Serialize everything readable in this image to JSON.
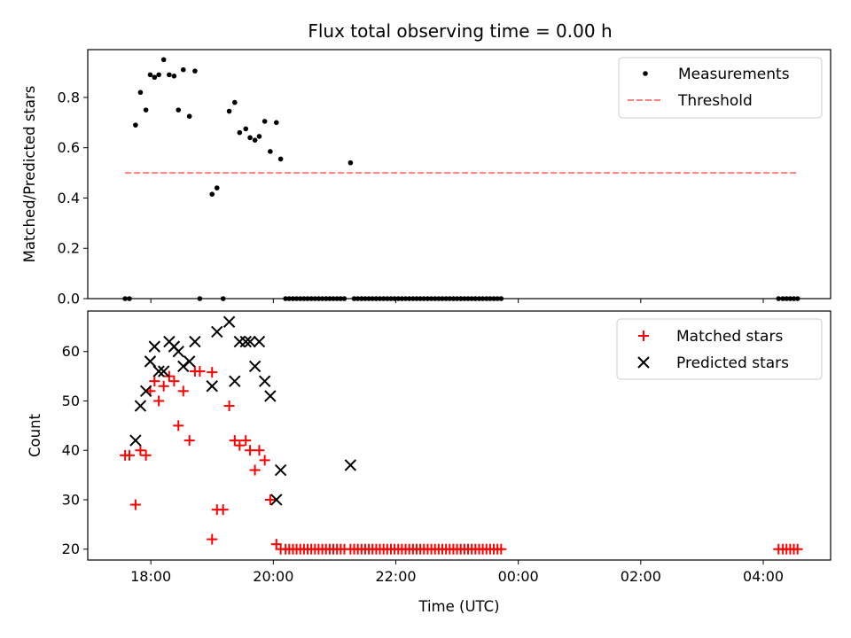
{
  "chart_data": {
    "type": "scatter",
    "title": "Flux total observing time = 0.00 h",
    "xlabel": "Time (UTC)",
    "x_unit": "hours",
    "x_ticks": [
      {
        "value": 18,
        "label": "18:00"
      },
      {
        "value": 20,
        "label": "20:00"
      },
      {
        "value": 22,
        "label": "22:00"
      },
      {
        "value": 24,
        "label": "00:00"
      },
      {
        "value": 26,
        "label": "02:00"
      },
      {
        "value": 28,
        "label": "04:00"
      }
    ],
    "xlim": [
      16.97,
      29.1
    ],
    "panels": [
      {
        "ylabel": "Matched/Predicted stars",
        "ylim": [
          0,
          0.99
        ],
        "y_ticks": [
          {
            "value": 0.0,
            "label": "0.0"
          },
          {
            "value": 0.2,
            "label": "0.2"
          },
          {
            "value": 0.4,
            "label": "0.4"
          },
          {
            "value": 0.6,
            "label": "0.6"
          },
          {
            "value": 0.8,
            "label": "0.8"
          }
        ],
        "legend_position": "top-right",
        "series": [
          {
            "name": "Measurements",
            "marker": "dot",
            "color": "#000000",
            "points": [
              [
                17.58,
                0
              ],
              [
                17.65,
                0
              ],
              [
                17.75,
                0.69
              ],
              [
                17.83,
                0.82
              ],
              [
                17.92,
                0.75
              ],
              [
                17.99,
                0.89
              ],
              [
                18.06,
                0.88
              ],
              [
                18.13,
                0.89
              ],
              [
                18.21,
                0.95
              ],
              [
                18.3,
                0.89
              ],
              [
                18.38,
                0.885
              ],
              [
                18.45,
                0.75
              ],
              [
                18.53,
                0.91
              ],
              [
                18.63,
                0.725
              ],
              [
                18.72,
                0.905
              ],
              [
                18.8,
                0
              ],
              [
                19.0,
                0.415
              ],
              [
                19.08,
                0.44
              ],
              [
                19.18,
                0
              ],
              [
                19.28,
                0.745
              ],
              [
                19.37,
                0.78
              ],
              [
                19.45,
                0.66
              ],
              [
                19.55,
                0.675
              ],
              [
                19.62,
                0.64
              ],
              [
                19.7,
                0.63
              ],
              [
                19.77,
                0.645
              ],
              [
                19.86,
                0.705
              ],
              [
                19.95,
                0.585
              ],
              [
                20.05,
                0.7
              ],
              [
                20.12,
                0.555
              ],
              [
                20.2,
                0
              ],
              [
                20.26,
                0
              ],
              [
                20.32,
                0
              ],
              [
                20.38,
                0
              ],
              [
                20.44,
                0
              ],
              [
                20.5,
                0
              ],
              [
                20.56,
                0
              ],
              [
                20.62,
                0
              ],
              [
                20.68,
                0
              ],
              [
                20.74,
                0
              ],
              [
                20.8,
                0
              ],
              [
                20.86,
                0
              ],
              [
                20.92,
                0
              ],
              [
                20.98,
                0
              ],
              [
                21.04,
                0
              ],
              [
                21.1,
                0
              ],
              [
                21.16,
                0
              ],
              [
                21.26,
                0.54
              ],
              [
                21.32,
                0
              ],
              [
                21.38,
                0
              ],
              [
                21.44,
                0
              ],
              [
                21.5,
                0
              ],
              [
                21.56,
                0
              ],
              [
                21.62,
                0
              ],
              [
                21.68,
                0
              ],
              [
                21.74,
                0
              ],
              [
                21.8,
                0
              ],
              [
                21.86,
                0
              ],
              [
                21.92,
                0
              ],
              [
                21.98,
                0
              ],
              [
                22.04,
                0
              ],
              [
                22.1,
                0
              ],
              [
                22.16,
                0
              ],
              [
                22.22,
                0
              ],
              [
                22.28,
                0
              ],
              [
                22.34,
                0
              ],
              [
                22.4,
                0
              ],
              [
                22.46,
                0
              ],
              [
                22.52,
                0
              ],
              [
                22.58,
                0
              ],
              [
                22.64,
                0
              ],
              [
                22.7,
                0
              ],
              [
                22.76,
                0
              ],
              [
                22.82,
                0
              ],
              [
                22.88,
                0
              ],
              [
                22.94,
                0
              ],
              [
                23.0,
                0
              ],
              [
                23.06,
                0
              ],
              [
                23.12,
                0
              ],
              [
                23.18,
                0
              ],
              [
                23.24,
                0
              ],
              [
                23.3,
                0
              ],
              [
                23.36,
                0
              ],
              [
                23.42,
                0
              ],
              [
                23.48,
                0
              ],
              [
                23.54,
                0
              ],
              [
                23.6,
                0
              ],
              [
                23.66,
                0
              ],
              [
                23.72,
                0
              ],
              [
                28.25,
                0
              ],
              [
                28.32,
                0
              ],
              [
                28.38,
                0
              ],
              [
                28.44,
                0
              ],
              [
                28.5,
                0
              ],
              [
                28.56,
                0
              ]
            ]
          },
          {
            "name": "Threshold",
            "marker": "dashed-line",
            "color": "#ff7f7f",
            "points": [
              [
                17.58,
                0.5
              ],
              [
                28.56,
                0.5
              ]
            ]
          }
        ]
      },
      {
        "ylabel": "Count",
        "ylim": [
          17.8,
          68.2
        ],
        "y_ticks": [
          {
            "value": 20,
            "label": "20"
          },
          {
            "value": 30,
            "label": "30"
          },
          {
            "value": 40,
            "label": "40"
          },
          {
            "value": 50,
            "label": "50"
          },
          {
            "value": 60,
            "label": "60"
          }
        ],
        "legend_position": "top-right",
        "series": [
          {
            "name": "Matched stars",
            "marker": "plus",
            "color": "#ff0000",
            "points": [
              [
                17.58,
                39
              ],
              [
                17.65,
                39
              ],
              [
                17.75,
                29
              ],
              [
                17.83,
                40
              ],
              [
                17.92,
                39
              ],
              [
                17.99,
                52
              ],
              [
                18.06,
                54
              ],
              [
                18.13,
                50
              ],
              [
                18.21,
                53
              ],
              [
                18.3,
                55
              ],
              [
                18.38,
                54
              ],
              [
                18.45,
                45
              ],
              [
                18.53,
                52
              ],
              [
                18.63,
                42
              ],
              [
                18.72,
                56
              ],
              [
                18.8,
                56
              ],
              [
                19.0,
                55.8
              ],
              [
                19.0,
                22
              ],
              [
                19.08,
                28
              ],
              [
                19.18,
                28
              ],
              [
                19.28,
                49
              ],
              [
                19.37,
                42
              ],
              [
                19.45,
                41
              ],
              [
                19.55,
                42
              ],
              [
                19.62,
                40
              ],
              [
                19.7,
                36
              ],
              [
                19.77,
                40
              ],
              [
                19.86,
                38
              ],
              [
                19.95,
                30
              ],
              [
                20.05,
                21
              ],
              [
                20.12,
                20
              ],
              [
                20.2,
                20
              ],
              [
                20.26,
                20
              ],
              [
                20.32,
                20
              ],
              [
                20.38,
                20
              ],
              [
                20.44,
                20
              ],
              [
                20.5,
                20
              ],
              [
                20.56,
                20
              ],
              [
                20.62,
                20
              ],
              [
                20.68,
                20
              ],
              [
                20.74,
                20
              ],
              [
                20.8,
                20
              ],
              [
                20.86,
                20
              ],
              [
                20.92,
                20
              ],
              [
                20.98,
                20
              ],
              [
                21.04,
                20
              ],
              [
                21.1,
                20
              ],
              [
                21.16,
                20
              ],
              [
                21.26,
                20
              ],
              [
                21.32,
                20
              ],
              [
                21.38,
                20
              ],
              [
                21.44,
                20
              ],
              [
                21.5,
                20
              ],
              [
                21.56,
                20
              ],
              [
                21.62,
                20
              ],
              [
                21.68,
                20
              ],
              [
                21.74,
                20
              ],
              [
                21.8,
                20
              ],
              [
                21.86,
                20
              ],
              [
                21.92,
                20
              ],
              [
                21.98,
                20
              ],
              [
                22.04,
                20
              ],
              [
                22.1,
                20
              ],
              [
                22.16,
                20
              ],
              [
                22.22,
                20
              ],
              [
                22.28,
                20
              ],
              [
                22.34,
                20
              ],
              [
                22.4,
                20
              ],
              [
                22.46,
                20
              ],
              [
                22.52,
                20
              ],
              [
                22.58,
                20
              ],
              [
                22.64,
                20
              ],
              [
                22.7,
                20
              ],
              [
                22.76,
                20
              ],
              [
                22.82,
                20
              ],
              [
                22.88,
                20
              ],
              [
                22.94,
                20
              ],
              [
                23.0,
                20
              ],
              [
                23.06,
                20
              ],
              [
                23.12,
                20
              ],
              [
                23.18,
                20
              ],
              [
                23.24,
                20
              ],
              [
                23.3,
                20
              ],
              [
                23.36,
                20
              ],
              [
                23.42,
                20
              ],
              [
                23.48,
                20
              ],
              [
                23.54,
                20
              ],
              [
                23.6,
                20
              ],
              [
                23.66,
                20
              ],
              [
                23.72,
                20
              ],
              [
                28.25,
                20
              ],
              [
                28.32,
                20
              ],
              [
                28.38,
                20
              ],
              [
                28.44,
                20
              ],
              [
                28.5,
                20
              ],
              [
                28.56,
                20
              ]
            ]
          },
          {
            "name": "Predicted stars",
            "marker": "cross",
            "color": "#000000",
            "points": [
              [
                17.75,
                42
              ],
              [
                17.83,
                49
              ],
              [
                17.92,
                52
              ],
              [
                17.99,
                58
              ],
              [
                18.06,
                61
              ],
              [
                18.13,
                56
              ],
              [
                18.21,
                56
              ],
              [
                18.3,
                62
              ],
              [
                18.38,
                61
              ],
              [
                18.45,
                60
              ],
              [
                18.53,
                57
              ],
              [
                18.63,
                58
              ],
              [
                18.72,
                62
              ],
              [
                19.0,
                53
              ],
              [
                19.08,
                64
              ],
              [
                19.28,
                66
              ],
              [
                19.37,
                54
              ],
              [
                19.45,
                62
              ],
              [
                19.55,
                62
              ],
              [
                19.62,
                62
              ],
              [
                19.7,
                57
              ],
              [
                19.77,
                62
              ],
              [
                19.86,
                54
              ],
              [
                19.95,
                51
              ],
              [
                20.05,
                30
              ],
              [
                20.12,
                36
              ],
              [
                21.26,
                37
              ]
            ]
          }
        ]
      }
    ]
  }
}
